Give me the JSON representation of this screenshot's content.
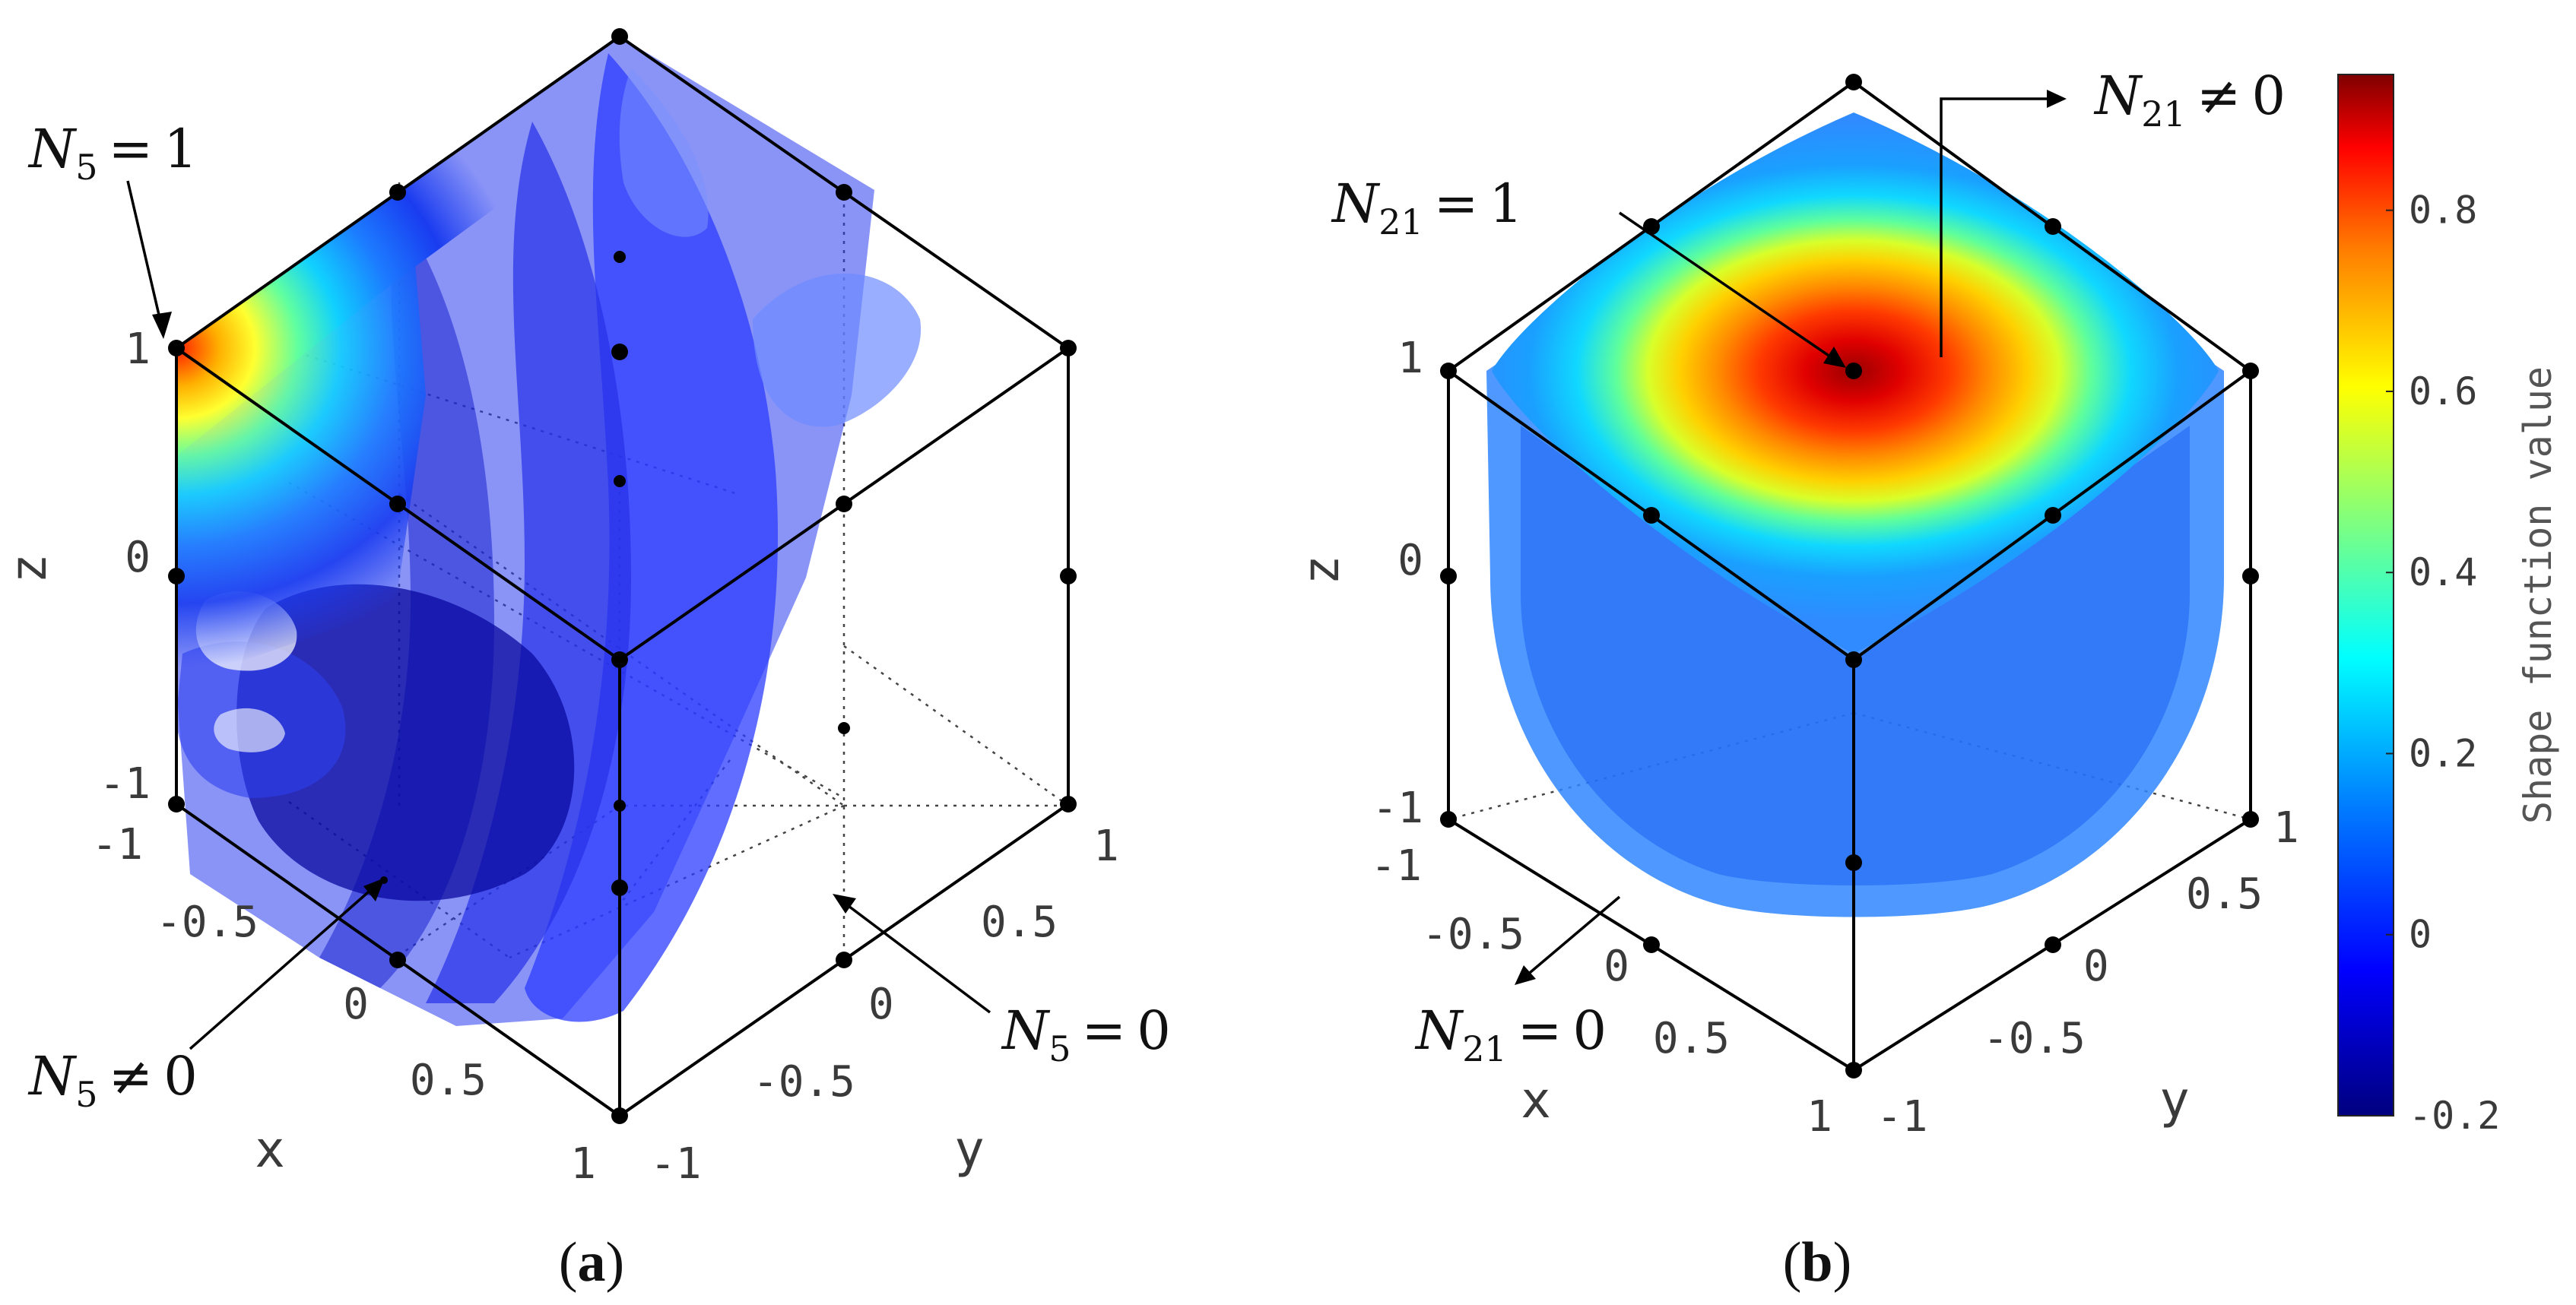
{
  "chart_data": [
    {
      "type": "isosurface",
      "panel_label": "a",
      "field": "N_5",
      "x_ticks": [
        "-1",
        "-0.5",
        "0",
        "0.5",
        "1"
      ],
      "y_ticks": [
        "-1",
        "-0.5",
        "0",
        "0.5",
        "1"
      ],
      "z_ticks": [
        "-1",
        "0",
        "1"
      ],
      "xlabel": "x",
      "ylabel": "y",
      "zlabel": "z",
      "xlim": [
        -1,
        1
      ],
      "ylim": [
        -1,
        1
      ],
      "zlim": [
        -1,
        1
      ],
      "peak_node": [
        -1,
        -1,
        1
      ],
      "annotations": [
        {
          "symbol": "N",
          "sub": "5",
          "rel": "=",
          "val": "1"
        },
        {
          "symbol": "N",
          "sub": "5",
          "rel": "≠",
          "val": "0"
        },
        {
          "symbol": "N",
          "sub": "5",
          "rel": "=",
          "val": "0"
        }
      ]
    },
    {
      "type": "isosurface",
      "panel_label": "b",
      "field": "N_21",
      "x_ticks": [
        "-1",
        "-0.5",
        "0",
        "0.5",
        "1"
      ],
      "y_ticks": [
        "-1",
        "-0.5",
        "0",
        "0.5",
        "1"
      ],
      "z_ticks": [
        "-1",
        "0",
        "1"
      ],
      "xlabel": "x",
      "ylabel": "y",
      "zlabel": "z",
      "xlim": [
        -1,
        1
      ],
      "ylim": [
        -1,
        1
      ],
      "zlim": [
        -1,
        1
      ],
      "peak_node": [
        0,
        0,
        1
      ],
      "annotations": [
        {
          "symbol": "N",
          "sub": "21",
          "rel": "=",
          "val": "1"
        },
        {
          "symbol": "N",
          "sub": "21",
          "rel": "≠",
          "val": "0"
        },
        {
          "symbol": "N",
          "sub": "21",
          "rel": "=",
          "val": "0"
        }
      ]
    }
  ],
  "colorbar": {
    "label": "Shape function value",
    "range": [
      -0.2,
      0.95
    ],
    "ticks": [
      -0.2,
      0,
      0.2,
      0.4,
      0.6,
      0.8
    ],
    "tick_labels": [
      "-0.2",
      "0",
      "0.2",
      "0.4",
      "0.6",
      "0.8"
    ],
    "colormap": [
      "#00007f",
      "#0000ff",
      "#007fff",
      "#00ffff",
      "#7fff7f",
      "#ffff00",
      "#ff7f00",
      "#ff0000",
      "#7f0000"
    ]
  }
}
